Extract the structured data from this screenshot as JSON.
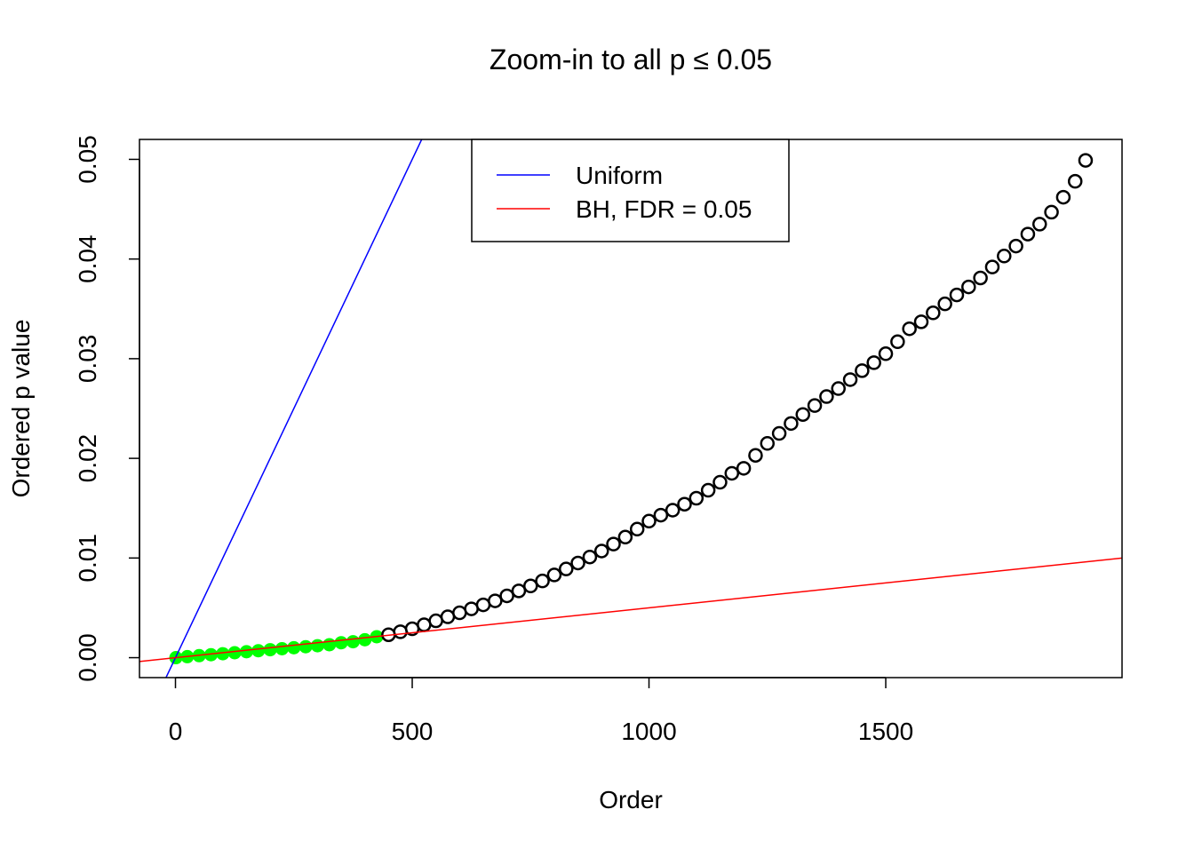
{
  "chart_data": {
    "type": "scatter",
    "title": "Zoom-in to all p ≤ 0.05",
    "x_label": "Order",
    "y_label": "Ordered p value",
    "xlim": [
      -76,
      1999
    ],
    "ylim": [
      -0.002,
      0.052
    ],
    "xticks": [
      0,
      500,
      1000,
      1500
    ],
    "yticks": [
      {
        "value": 0,
        "label": "0.00"
      },
      0.01,
      0.02,
      0.03,
      0.04,
      0.05
    ],
    "series": [
      {
        "color": "#00ff00",
        "fill": true,
        "x": [
          1,
          25,
          50,
          75,
          100,
          125,
          150,
          175,
          200,
          225,
          250,
          275,
          300,
          325,
          350,
          375,
          400,
          425
        ],
        "values": [
          0,
          0.0001,
          0.0002,
          0.0003,
          0.0004,
          0.0005,
          0.0006,
          0.0007,
          0.0008,
          0.0009,
          0.001,
          0.0011,
          0.0012,
          0.0013,
          0.0015,
          0.0016,
          0.0018,
          0.0021
        ]
      },
      {
        "color": "#000000",
        "fill": false,
        "x": [
          450,
          475,
          500,
          525,
          550,
          575,
          600,
          625,
          650,
          675,
          700,
          725,
          750,
          775,
          800,
          825,
          850,
          875,
          900,
          925,
          950,
          975,
          1000,
          1025,
          1050,
          1075,
          1100,
          1125,
          1150,
          1175,
          1200,
          1225,
          1250,
          1275,
          1300,
          1325,
          1350,
          1375,
          1400,
          1425,
          1450,
          1475,
          1500,
          1525,
          1550,
          1575,
          1600,
          1625,
          1650,
          1675,
          1700,
          1725,
          1750,
          1775,
          1800,
          1825,
          1850,
          1875,
          1900,
          1922
        ],
        "values": [
          0.0023,
          0.0026,
          0.0029,
          0.0033,
          0.0037,
          0.0041,
          0.0045,
          0.0049,
          0.0053,
          0.0057,
          0.0062,
          0.0067,
          0.0072,
          0.0077,
          0.0083,
          0.0089,
          0.0095,
          0.0101,
          0.0107,
          0.0114,
          0.0121,
          0.0129,
          0.0137,
          0.0143,
          0.0148,
          0.0154,
          0.016,
          0.0168,
          0.0176,
          0.0185,
          0.019,
          0.0203,
          0.0215,
          0.0225,
          0.0235,
          0.0244,
          0.0253,
          0.0262,
          0.027,
          0.0279,
          0.0288,
          0.0296,
          0.0305,
          0.0317,
          0.033,
          0.0337,
          0.0346,
          0.0355,
          0.0364,
          0.0372,
          0.0381,
          0.0392,
          0.0403,
          0.0413,
          0.0425,
          0.0435,
          0.0447,
          0.0462,
          0.0478,
          0.0499
        ]
      }
    ],
    "reference_lines": [
      {
        "name": "Uniform",
        "color": "#0000ff",
        "slope": 0.0001,
        "intercept": 0
      },
      {
        "name": "BH, FDR = 0.05",
        "color": "#ff0000",
        "slope": 5e-06,
        "intercept": 0
      }
    ]
  }
}
